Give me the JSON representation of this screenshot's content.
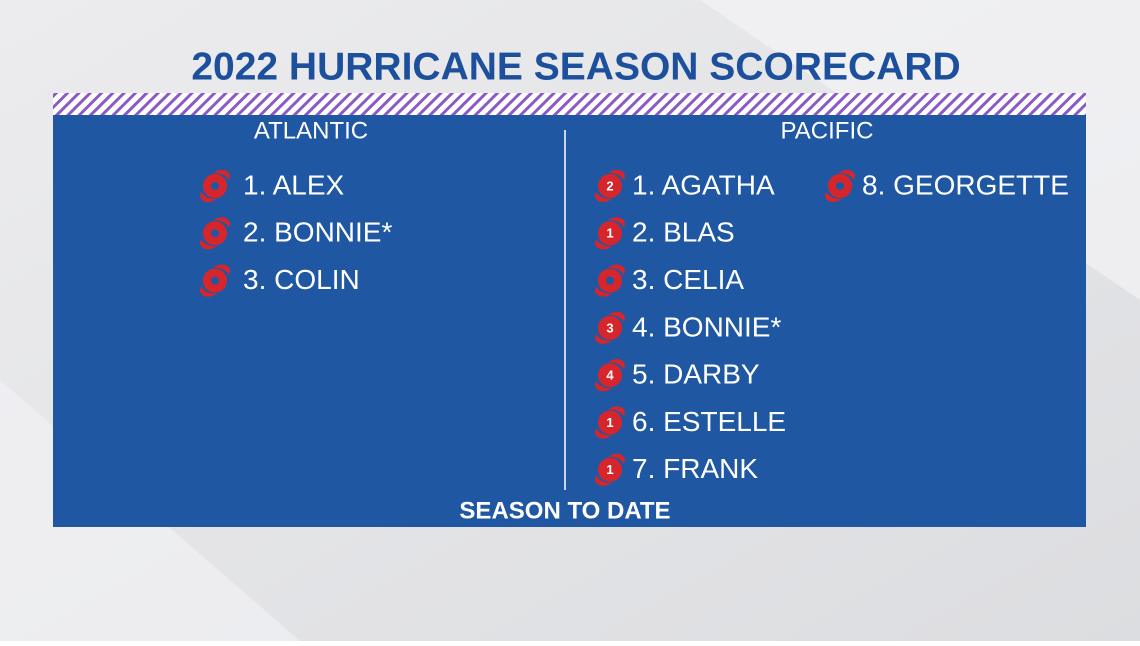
{
  "title": "2022 HURRICANE SEASON SCORECARD",
  "footer": "SEASON TO DATE",
  "sections": [
    {
      "heading": "ATLANTIC",
      "storms": [
        {
          "name": "1. ALEX"
        },
        {
          "name": "2. BONNIE*"
        },
        {
          "name": "3. COLIN"
        }
      ]
    },
    {
      "heading": "PACIFIC",
      "storms": [
        {
          "name": "1. AGATHA",
          "category": 2
        },
        {
          "name": "2. BLAS",
          "category": 1
        },
        {
          "name": "3. CELIA"
        },
        {
          "name": "4. BONNIE*",
          "category": 3
        },
        {
          "name": "5. DARBY",
          "category": 4
        },
        {
          "name": "6. ESTELLE",
          "category": 1
        },
        {
          "name": "7. FRANK",
          "category": 1
        },
        {
          "name": "8. GEORGETTE"
        }
      ]
    }
  ]
}
